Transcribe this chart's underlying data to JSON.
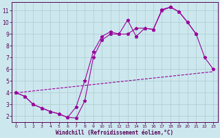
{
  "xlabel": "Windchill (Refroidissement éolien,°C)",
  "background_color": "#cce8ee",
  "line_color": "#990099",
  "grid_color": "#aacccc",
  "x_min": -0.5,
  "x_max": 23.5,
  "y_min": 1.5,
  "y_max": 11.7,
  "line1_x": [
    0,
    1,
    2,
    3,
    4,
    5,
    6,
    7,
    8,
    9,
    10,
    11,
    12,
    13,
    14,
    15,
    16,
    17,
    18,
    19,
    20,
    21
  ],
  "line1_y": [
    4.0,
    3.7,
    3.0,
    2.7,
    2.4,
    2.2,
    1.9,
    2.8,
    5.0,
    7.5,
    8.8,
    9.2,
    9.0,
    10.2,
    8.8,
    9.5,
    9.4,
    11.0,
    11.3,
    10.9,
    10.0,
    9.0
  ],
  "line2_x": [
    0,
    1,
    2,
    3,
    4,
    5,
    6,
    7,
    8,
    9,
    10,
    11,
    12,
    13,
    14,
    15,
    16,
    17,
    18,
    19,
    20,
    21,
    22,
    23
  ],
  "line2_y": [
    4.0,
    3.7,
    3.0,
    2.7,
    2.4,
    2.2,
    1.9,
    1.85,
    3.3,
    7.0,
    8.5,
    9.0,
    9.0,
    9.0,
    9.5,
    9.5,
    9.4,
    11.1,
    11.3,
    10.9,
    10.0,
    9.0,
    7.0,
    6.0
  ],
  "line3_x": [
    0,
    23
  ],
  "line3_y": [
    4.0,
    5.8
  ],
  "yticks": [
    2,
    3,
    4,
    5,
    6,
    7,
    8,
    9,
    10,
    11
  ],
  "xticks": [
    0,
    1,
    2,
    3,
    4,
    5,
    6,
    7,
    8,
    9,
    10,
    11,
    12,
    13,
    14,
    15,
    16,
    17,
    18,
    19,
    20,
    21,
    22,
    23
  ]
}
